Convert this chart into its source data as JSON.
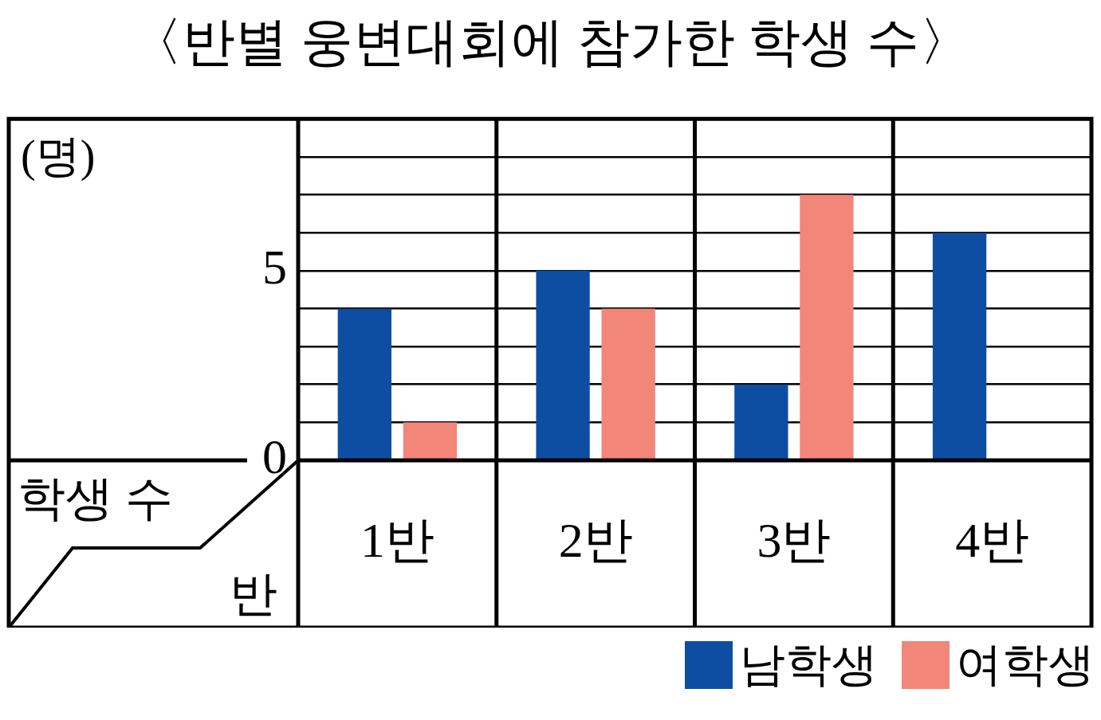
{
  "chart_data": {
    "type": "bar",
    "title": "〈반별 웅변대회에 참가한 학생 수〉",
    "ylabel": "(명)",
    "xlabel": "반",
    "annotations": [
      "학생 수"
    ],
    "categories": [
      "1반",
      "2반",
      "3반",
      "4반"
    ],
    "series": [
      {
        "name": "남학생",
        "color": "#0d4ea3",
        "values": [
          4,
          5,
          2,
          6
        ]
      },
      {
        "name": "여학생",
        "color": "#f28679",
        "values": [
          1,
          4,
          7,
          0
        ]
      }
    ],
    "ylim": [
      0,
      9
    ],
    "yticks": [
      0,
      {
        "value": 1,
        "label": null
      },
      {
        "value": 2,
        "label": null
      },
      {
        "value": 3,
        "label": null
      },
      {
        "value": 4,
        "label": null
      },
      5,
      {
        "value": 6,
        "label": null
      },
      {
        "value": 7,
        "label": null
      },
      {
        "value": 8,
        "label": null
      }
    ],
    "grid": "y",
    "legend": "bottom right"
  }
}
